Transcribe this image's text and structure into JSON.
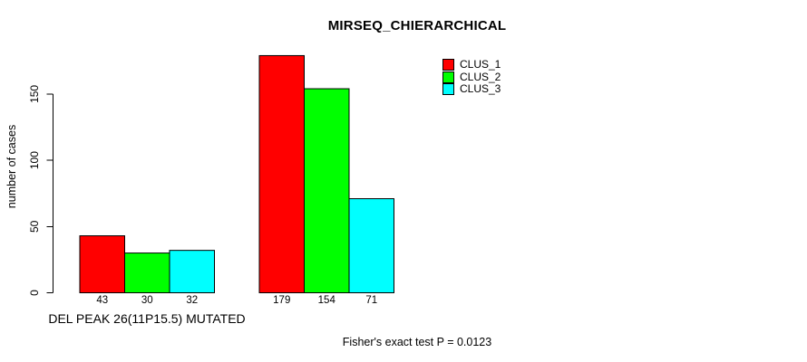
{
  "chart_data": {
    "type": "bar",
    "title": "MIRSEQ_CHIERARCHICAL",
    "ylabel": "number of cases",
    "group_labels": [
      "DEL PEAK 26(11P15.5) MUTATED",
      ""
    ],
    "series": [
      {
        "name": "CLUS_1",
        "color": "#FF0000",
        "values": [
          43,
          179
        ]
      },
      {
        "name": "CLUS_2",
        "color": "#00FF00",
        "values": [
          30,
          154
        ]
      },
      {
        "name": "CLUS_3",
        "color": "#00FFFF",
        "values": [
          32,
          71
        ]
      }
    ],
    "yticks": [
      0,
      50,
      100,
      150
    ],
    "ylim": [
      0,
      185
    ],
    "bar_value_labels": [
      [
        43,
        30,
        32
      ],
      [
        179,
        154,
        71
      ]
    ],
    "annotation": "Fisher's exact test P = 0.0123",
    "legend_position": "top-right",
    "grid": false
  },
  "colors": {
    "background": "#FFFFFF",
    "bar_border": "#000000",
    "axis": "#000000",
    "text": "#000000"
  }
}
